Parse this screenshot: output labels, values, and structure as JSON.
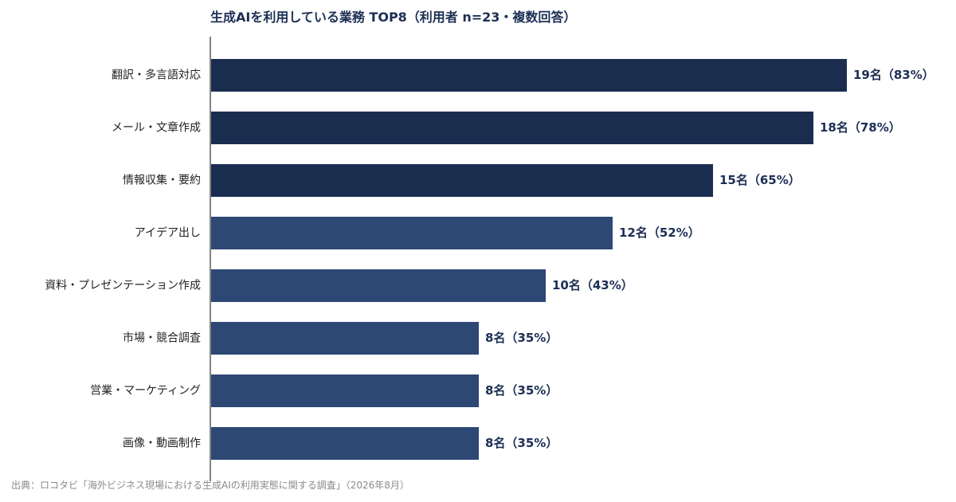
{
  "chart_data": {
    "type": "bar",
    "orientation": "horizontal",
    "title": "生成AIを利用している業務 TOP8（利用者 n=23・複数回答）",
    "categories": [
      "翻訳・多言語対応",
      "メール・文章作成",
      "情報収集・要約",
      "アイデア出し",
      "資料・プレゼンテーション作成",
      "市場・競合調査",
      "営業・マーケティング",
      "画像・動画制作"
    ],
    "values": [
      19,
      18,
      15,
      12,
      10,
      8,
      8,
      8
    ],
    "value_labels": [
      "19名（83%）",
      "18名（78%）",
      "15名（65%）",
      "12名（52%）",
      "10名（43%）",
      "8名（35%）",
      "8名（35%）",
      "8名（35%）"
    ],
    "xlim": [
      0,
      20
    ],
    "grid": false,
    "colors": {
      "top_bars": "#1b2d4f",
      "other_bars": "#2e4875",
      "axis": "#333333"
    },
    "source": "出典：ロコタビ「海外ビジネス現場における生成AIの利用実態に関する調査」（2026年8月）"
  }
}
